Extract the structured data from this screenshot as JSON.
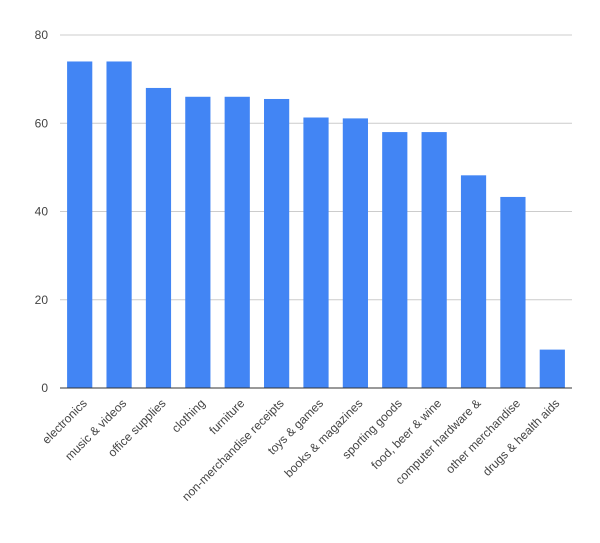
{
  "chart_data": {
    "type": "bar",
    "categories": [
      "electronics",
      "music & videos",
      "office supplies",
      "clothing",
      "furniture",
      "non-merchandise receipts",
      "toys & games",
      "books & magazines",
      "sporting goods",
      "food, beer & wine",
      "computer hardware &",
      "other merchandise",
      "drugs & health aids"
    ],
    "values": [
      74,
      74,
      68,
      66,
      66,
      65.5,
      61.3,
      61.1,
      58,
      58,
      48.2,
      43.3,
      8.7
    ],
    "title": "",
    "xlabel": "",
    "ylabel": "",
    "ylim": [
      0,
      80
    ],
    "yticks": [
      0,
      20,
      40,
      60,
      80
    ],
    "grid": true,
    "legend": "none",
    "bar_color": "#4285f4",
    "grid_color": "#cccccc",
    "axis_color": "#333333"
  }
}
